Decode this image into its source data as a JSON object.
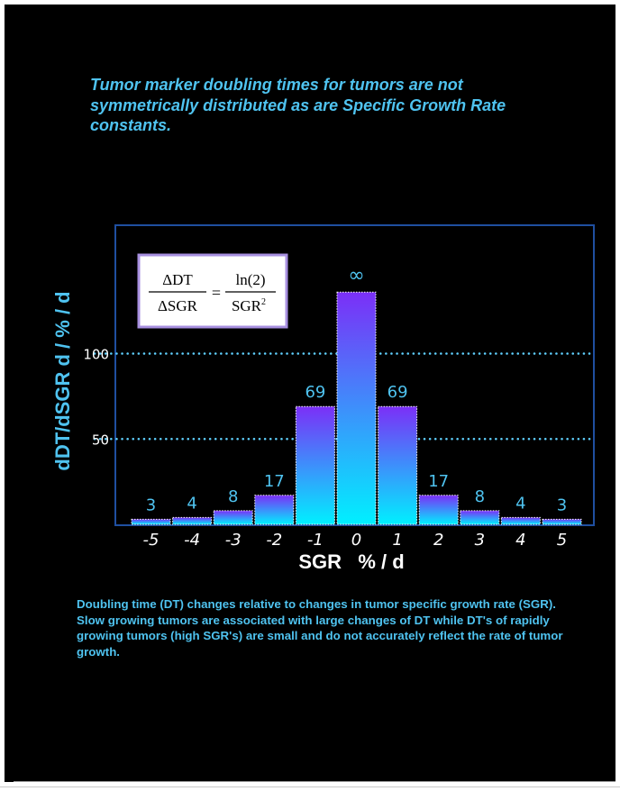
{
  "headline": "Tumor marker doubling times for tumors are not symmetrically distributed as are Specific Growth Rate constants.",
  "caption": "Doubling time (DT) changes relative to changes in tumor specific growth rate (SGR). Slow growing tumors are associated with large changes of DT while DT's of rapidly growing tumors (high SGR's) are small and do not accurately reflect the rate of tumor growth.",
  "formula": {
    "lhs_numerator": "ΔDT",
    "lhs_denominator": "ΔSGR",
    "equals": "=",
    "rhs_numerator": "ln(2)",
    "rhs_denominator_base": "SGR",
    "rhs_denominator_exp": "2"
  },
  "colors": {
    "text": "#4fc3f0",
    "bar_top": "#7b2ff7",
    "bar_bottom": "#00f0ff",
    "frame": "#1f4fa0",
    "grid": "#5fd0ff"
  },
  "chart_data": {
    "type": "bar",
    "xlabel": "SGR   % / d",
    "ylabel": "dDT/dSGR d / % / d",
    "categories": [
      "-5",
      "-4",
      "-3",
      "-2",
      "-1",
      "0",
      "1",
      "2",
      "3",
      "4",
      "5"
    ],
    "values": [
      3,
      4,
      8,
      17,
      69,
      null,
      69,
      17,
      8,
      4,
      3
    ],
    "labels": [
      "3",
      "4",
      "8",
      "17",
      "69",
      "∞",
      "69",
      "17",
      "8",
      "4",
      "3"
    ],
    "yticks": [
      50,
      100
    ],
    "ylim": [
      0,
      150
    ],
    "gridlines": [
      50,
      100
    ],
    "infinite_categories": [
      "0"
    ],
    "infinite_bar_display_value": 136
  }
}
